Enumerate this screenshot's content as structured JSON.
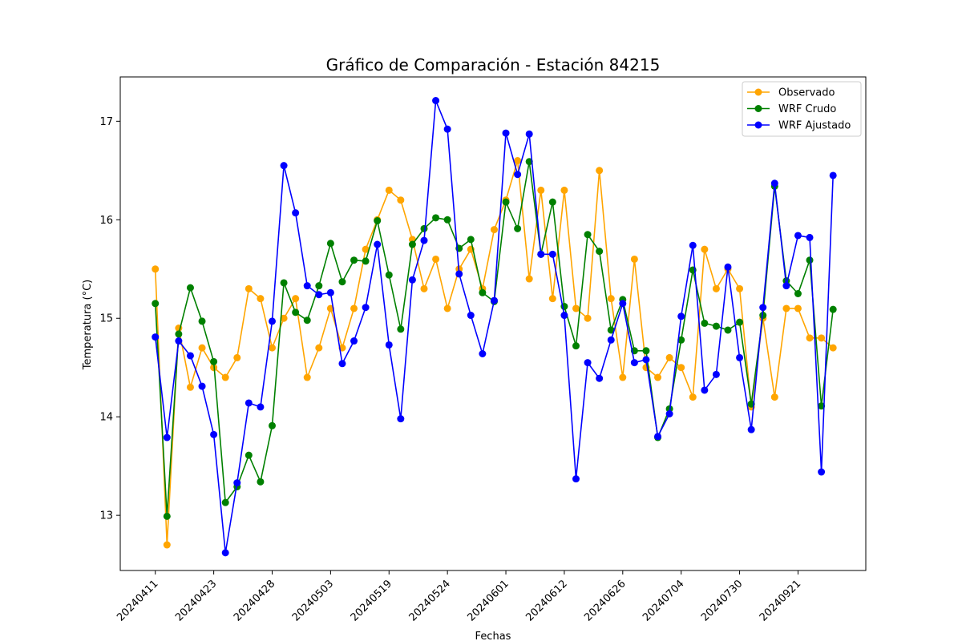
{
  "chart_data": {
    "type": "line",
    "title": "Gráfico de Comparación - Estación 84215",
    "xlabel": "Fechas",
    "ylabel": "Temperatura (°C)",
    "ylim": [
      12.44,
      17.45
    ],
    "y_ticks": [
      13,
      14,
      15,
      16,
      17
    ],
    "x_range": [
      -3,
      60.8
    ],
    "x_ticks": [
      {
        "x": 0,
        "label": "20240411"
      },
      {
        "x": 5,
        "label": "20240423"
      },
      {
        "x": 10,
        "label": "20240428"
      },
      {
        "x": 15,
        "label": "20240503"
      },
      {
        "x": 20,
        "label": "20240519"
      },
      {
        "x": 25,
        "label": "20240524"
      },
      {
        "x": 30,
        "label": "20240601"
      },
      {
        "x": 35,
        "label": "20240612"
      },
      {
        "x": 40,
        "label": "20240626"
      },
      {
        "x": 45,
        "label": "20240704"
      },
      {
        "x": 50,
        "label": "20240730"
      },
      {
        "x": 55,
        "label": "20240921"
      }
    ],
    "legend_position": "top-right",
    "grid": false,
    "series": [
      {
        "name": "Observado",
        "color": "#ffa500",
        "values": [
          15.5,
          12.7,
          14.9,
          14.3,
          14.7,
          14.5,
          14.4,
          14.6,
          15.3,
          15.2,
          14.7,
          15.0,
          15.2,
          14.4,
          14.7,
          15.1,
          14.7,
          15.1,
          15.7,
          16.0,
          16.3,
          16.2,
          15.8,
          15.3,
          15.6,
          15.1,
          15.5,
          15.7,
          15.3,
          15.9,
          16.2,
          16.6,
          15.4,
          16.3,
          15.2,
          16.3,
          15.1,
          15.0,
          16.5,
          15.2,
          14.4,
          15.6,
          14.5,
          14.4,
          14.6,
          14.5,
          14.2,
          15.7,
          15.3,
          15.5,
          15.3,
          14.1,
          15.0,
          14.2,
          15.1,
          15.1,
          14.8,
          14.8,
          14.7
        ]
      },
      {
        "name": "WRF Crudo",
        "color": "#008000",
        "values": [
          15.15,
          12.99,
          14.84,
          15.31,
          14.97,
          14.56,
          13.13,
          13.29,
          13.61,
          13.34,
          13.91,
          15.36,
          15.06,
          14.98,
          15.33,
          15.76,
          15.37,
          15.59,
          15.58,
          15.99,
          15.44,
          14.89,
          15.75,
          15.91,
          16.02,
          16.0,
          15.71,
          15.8,
          15.26,
          15.17,
          16.18,
          15.91,
          16.59,
          15.65,
          16.18,
          15.12,
          14.72,
          15.85,
          15.68,
          14.88,
          15.19,
          14.67,
          14.67,
          13.79,
          14.08,
          14.78,
          15.49,
          14.95,
          14.92,
          14.88,
          14.96,
          14.13,
          15.03,
          16.34,
          15.38,
          15.25,
          15.59,
          14.11,
          15.09
        ]
      },
      {
        "name": "WRF Ajustado",
        "color": "#0000ff",
        "values": [
          14.81,
          13.79,
          14.77,
          14.62,
          14.31,
          13.82,
          12.62,
          13.33,
          14.14,
          14.1,
          14.97,
          16.55,
          16.07,
          15.33,
          15.24,
          15.26,
          14.54,
          14.77,
          15.11,
          15.75,
          14.73,
          13.98,
          15.39,
          15.79,
          17.21,
          16.92,
          15.45,
          15.03,
          14.64,
          15.18,
          16.88,
          16.46,
          16.87,
          15.65,
          15.65,
          15.03,
          13.37,
          14.55,
          14.39,
          14.78,
          15.15,
          14.55,
          14.58,
          13.8,
          14.03,
          15.02,
          15.74,
          14.27,
          14.43,
          15.52,
          14.6,
          13.87,
          15.11,
          16.37,
          15.33,
          15.84,
          15.82,
          13.44,
          16.45
        ]
      }
    ]
  }
}
